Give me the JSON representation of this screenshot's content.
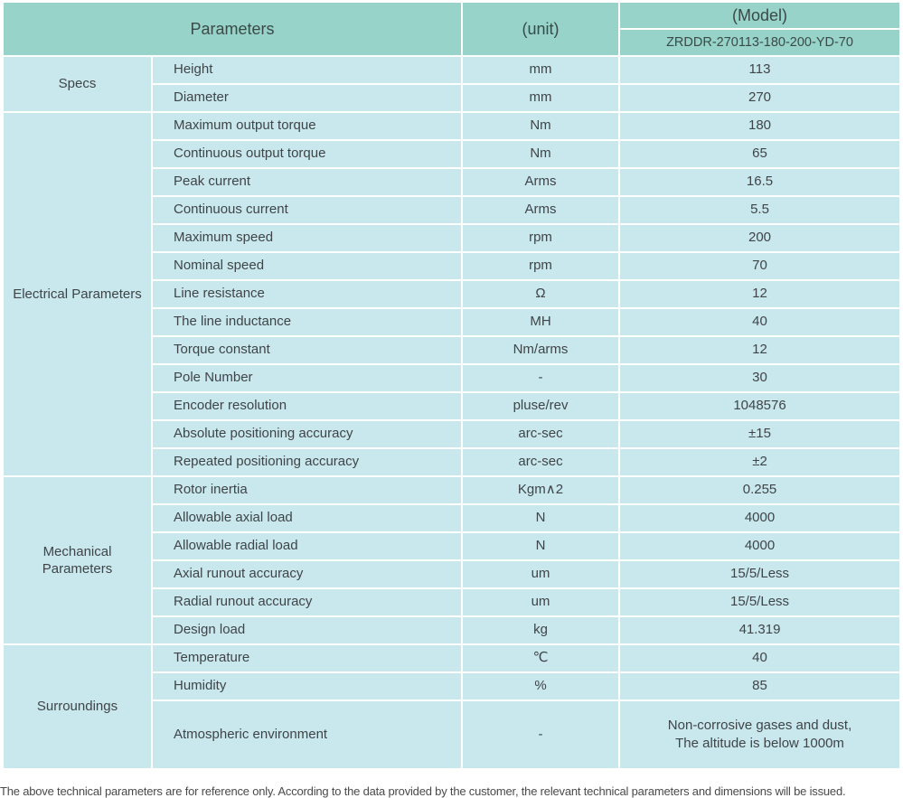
{
  "header": {
    "parameters_label": "Parameters",
    "unit_label": "(unit)",
    "model_label": "(Model)",
    "model_number": "ZRDDR-270113-180-200-YD-70"
  },
  "colors": {
    "header_bg": "#97d3c8",
    "cell_bg": "#c9e8ee",
    "grid": "#ffffff",
    "text": "#3f4447"
  },
  "sections": [
    {
      "name": "Specs",
      "rows": [
        {
          "param": "Height",
          "unit": "mm",
          "value": "113"
        },
        {
          "param": "Diameter",
          "unit": "mm",
          "value": "270"
        }
      ]
    },
    {
      "name": "Electrical Parameters",
      "rows": [
        {
          "param": "Maximum output torque",
          "unit": "Nm",
          "value": "180"
        },
        {
          "param": "Continuous output torque",
          "unit": "Nm",
          "value": "65"
        },
        {
          "param": "Peak current",
          "unit": "Arms",
          "value": "16.5"
        },
        {
          "param": "Continuous current",
          "unit": "Arms",
          "value": "5.5"
        },
        {
          "param": "Maximum speed",
          "unit": "rpm",
          "value": "200"
        },
        {
          "param": "Nominal speed",
          "unit": "rpm",
          "value": "70"
        },
        {
          "param": "Line resistance",
          "unit": "Ω",
          "value": "12"
        },
        {
          "param": "The line inductance",
          "unit": "MH",
          "value": "40"
        },
        {
          "param": "Torque constant",
          "unit": "Nm/arms",
          "value": "12"
        },
        {
          "param": "Pole Number",
          "unit": "-",
          "value": "30"
        },
        {
          "param": "Encoder resolution",
          "unit": "pluse/rev",
          "value": "1048576"
        },
        {
          "param": "Absolute positioning accuracy",
          "unit": "arc-sec",
          "value": "±15"
        },
        {
          "param": "Repeated positioning accuracy",
          "unit": "arc-sec",
          "value": "±2"
        }
      ]
    },
    {
      "name": "Mechanical Parameters",
      "rows": [
        {
          "param": "Rotor inertia",
          "unit": "Kgm∧2",
          "value": "0.255"
        },
        {
          "param": "Allowable axial load",
          "unit": "N",
          "value": "4000"
        },
        {
          "param": "Allowable radial load",
          "unit": "N",
          "value": "4000"
        },
        {
          "param": "Axial runout accuracy",
          "unit": "um",
          "value": "15/5/Less"
        },
        {
          "param": "Radial runout accuracy",
          "unit": "um",
          "value": "15/5/Less"
        },
        {
          "param": "Design load",
          "unit": "kg",
          "value": "41.319"
        }
      ]
    },
    {
      "name": "Surroundings",
      "rows": [
        {
          "param": "Temperature",
          "unit": "℃",
          "value": "40"
        },
        {
          "param": "Humidity",
          "unit": "%",
          "value": "85"
        },
        {
          "param": "Atmospheric environment",
          "unit": "-",
          "value": "Non-corrosive gases and dust,",
          "value_line2": "The altitude is below 1000m",
          "tall": true
        }
      ]
    }
  ],
  "footer": {
    "note": "The above technical parameters are for reference only. According to the data provided by the customer, the relevant technical parameters and dimensions will be issued."
  }
}
